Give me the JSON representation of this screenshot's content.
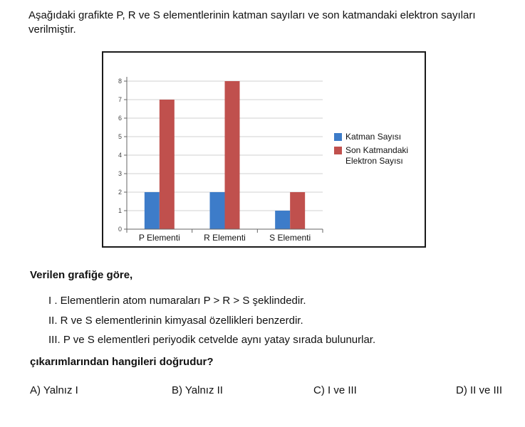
{
  "question": {
    "intro": "Aşağıdaki grafikte P, R ve S elementlerinin katman sayıları ve son katmandaki elektron sayıları verilmiştir.",
    "heading": "Verilen grafiğe göre,",
    "statements": [
      "I . Elementlerin atom numaraları P > R > S şeklindedir.",
      "II.  R ve S elementlerinin kimyasal özellikleri benzerdir.",
      "III.  P ve S elementleri periyodik cetvelde aynı yatay sırada bulunurlar."
    ],
    "prompt": "çıkarımlarından hangileri doğrudur?",
    "options": [
      "A) Yalnız I",
      "B) Yalnız II",
      "C) I ve III",
      "D) II ve III"
    ]
  },
  "chart_data": {
    "type": "bar",
    "categories": [
      "P Elementi",
      "R Elementi",
      "S Elementi"
    ],
    "series": [
      {
        "name": "Katman Sayısı",
        "values": [
          2,
          2,
          1
        ],
        "color": "#3d7cc9"
      },
      {
        "name": "Son Katmandaki Elektron Sayısı",
        "name_lines": [
          "Son Katmandaki",
          "Elektron Sayısı"
        ],
        "values": [
          7,
          8,
          2
        ],
        "color": "#c0504d"
      }
    ],
    "ylim": [
      0,
      8
    ],
    "yticks": [
      "0",
      "1",
      "2",
      "3",
      "4",
      "5",
      "6",
      "7",
      "8"
    ],
    "grid": true,
    "legend": "right"
  }
}
